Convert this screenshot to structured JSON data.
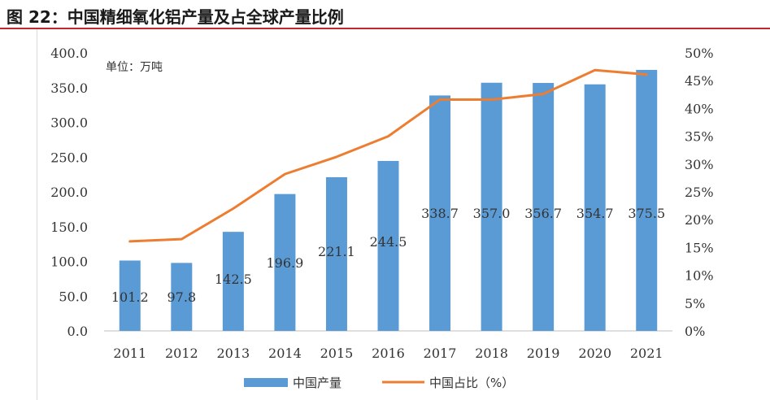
{
  "figure": {
    "title": "图 22：中国精细氧化铝产量及占全球产量比例"
  },
  "chart_data": {
    "type": "bar",
    "title": "",
    "unit_label": "单位：万吨",
    "categories": [
      "2011",
      "2012",
      "2013",
      "2014",
      "2015",
      "2016",
      "2017",
      "2018",
      "2019",
      "2020",
      "2021"
    ],
    "series": [
      {
        "name": "中国产量",
        "type": "bar",
        "axis": "left",
        "color": "#5b9bd5",
        "values": [
          101.2,
          97.8,
          142.5,
          196.9,
          221.1,
          244.5,
          338.7,
          357.0,
          356.7,
          354.7,
          375.5
        ],
        "labels": [
          "101.2",
          "97.8",
          "142.5",
          "196.9",
          "221.1",
          "244.5",
          "338.7",
          "357.0",
          "356.7",
          "354.7",
          "375.5"
        ]
      },
      {
        "name": "中国占比（%）",
        "type": "line",
        "axis": "right",
        "color": "#ed7d31",
        "values": [
          16.1,
          16.5,
          22.0,
          28.2,
          31.3,
          35.0,
          41.6,
          41.6,
          42.6,
          46.9,
          46.1
        ]
      }
    ],
    "y_left": {
      "min": 0,
      "max": 400,
      "step": 50,
      "ticks": [
        "0.0",
        "50.0",
        "100.0",
        "150.0",
        "200.0",
        "250.0",
        "300.0",
        "350.0",
        "400.0"
      ]
    },
    "y_right": {
      "min": 0,
      "max": 50,
      "step": 5,
      "ticks": [
        "0%",
        "5%",
        "10%",
        "15%",
        "20%",
        "25%",
        "30%",
        "35%",
        "40%",
        "45%",
        "50%"
      ]
    },
    "grid": false,
    "legend": "bottom"
  }
}
